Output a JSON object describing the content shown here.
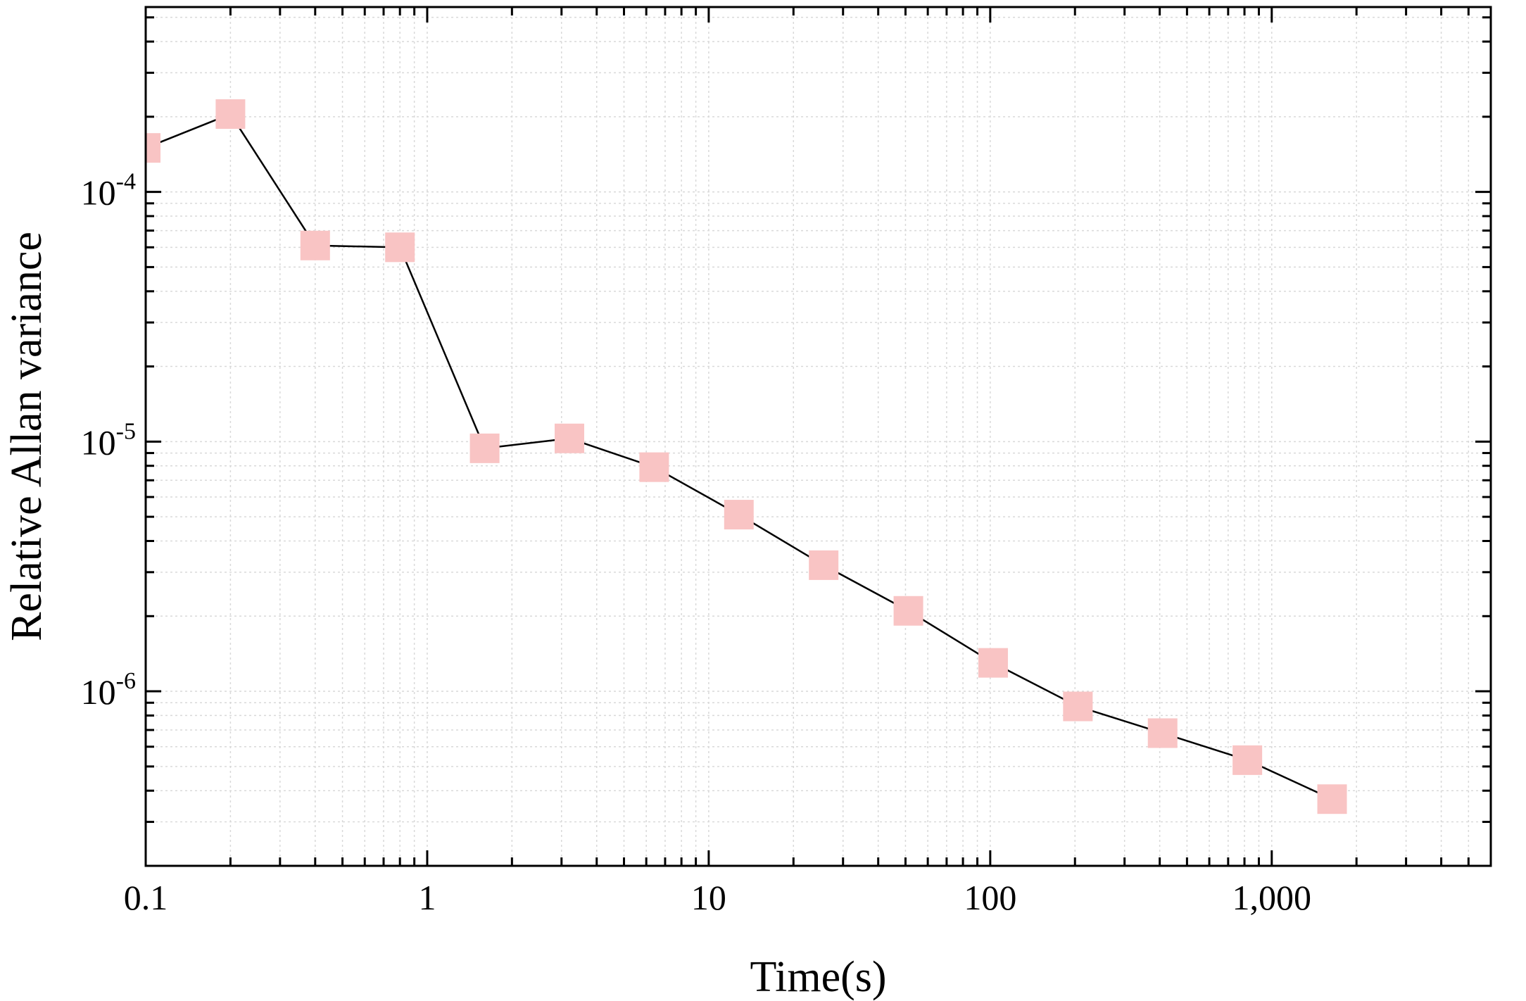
{
  "chart_data": {
    "type": "scatter",
    "title": "",
    "xlabel": "Time(s)",
    "ylabel": "Relative Allan variance",
    "xscale": "log",
    "yscale": "log",
    "xlim": [
      0.1,
      6000
    ],
    "ylim": [
      2e-07,
      0.00055
    ],
    "grid": true,
    "x_ticks": [
      {
        "value": 0.1,
        "label": "0.1"
      },
      {
        "value": 1,
        "label": "1"
      },
      {
        "value": 10,
        "label": "10"
      },
      {
        "value": 100,
        "label": "100"
      },
      {
        "value": 1000,
        "label": "1,000"
      }
    ],
    "y_ticks": [
      {
        "value": 0.0001,
        "base": "10",
        "exp": "-4"
      },
      {
        "value": 1e-05,
        "base": "10",
        "exp": "-5"
      },
      {
        "value": 1e-06,
        "base": "10",
        "exp": "-6"
      }
    ],
    "series": [
      {
        "marker": "square",
        "marker_color": "#f9c4c4",
        "line_color": "#000000",
        "x": [
          0.1,
          0.2,
          0.4,
          0.8,
          1.6,
          3.2,
          6.4,
          12.8,
          25.6,
          51.2,
          102.4,
          204.8,
          409.6,
          819.2,
          1638.4
        ],
        "y": [
          0.00015,
          0.000205,
          6.1e-05,
          6e-05,
          9.4e-06,
          1.03e-05,
          7.9e-06,
          5.1e-06,
          3.2e-06,
          2.1e-06,
          1.3e-06,
          8.7e-07,
          6.8e-07,
          5.3e-07,
          3.7e-07
        ]
      }
    ]
  }
}
